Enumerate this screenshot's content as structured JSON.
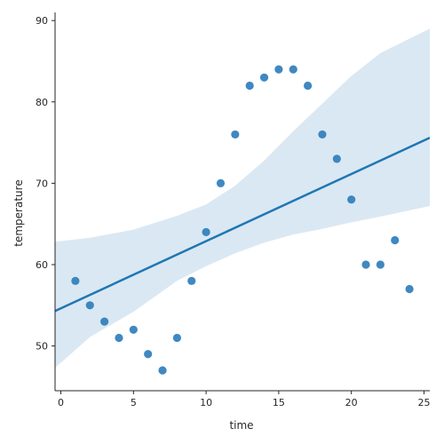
{
  "chart_data": {
    "type": "scatter",
    "title": "",
    "xlabel": "time",
    "ylabel": "temperature",
    "xlim": [
      -0.4,
      25.4
    ],
    "ylim": [
      44.5,
      91
    ],
    "xticks": [
      0,
      5,
      10,
      15,
      20,
      25
    ],
    "yticks": [
      50,
      60,
      70,
      80,
      90
    ],
    "grid": false,
    "colors": {
      "points": "#2f7ebc",
      "line": "#1f77b4",
      "band": "#bcd5ea"
    },
    "points": [
      {
        "x": 1,
        "y": 58
      },
      {
        "x": 2,
        "y": 55
      },
      {
        "x": 3,
        "y": 53
      },
      {
        "x": 4,
        "y": 51
      },
      {
        "x": 5,
        "y": 52
      },
      {
        "x": 6,
        "y": 49
      },
      {
        "x": 7,
        "y": 47
      },
      {
        "x": 8,
        "y": 51
      },
      {
        "x": 9,
        "y": 58
      },
      {
        "x": 10,
        "y": 64
      },
      {
        "x": 11,
        "y": 70
      },
      {
        "x": 12,
        "y": 76
      },
      {
        "x": 13,
        "y": 82
      },
      {
        "x": 14,
        "y": 83
      },
      {
        "x": 15,
        "y": 84
      },
      {
        "x": 16,
        "y": 84
      },
      {
        "x": 17,
        "y": 82
      },
      {
        "x": 18,
        "y": 76
      },
      {
        "x": 19,
        "y": 73
      },
      {
        "x": 20,
        "y": 68
      },
      {
        "x": 21,
        "y": 60
      },
      {
        "x": 22,
        "y": 60
      },
      {
        "x": 23,
        "y": 63
      },
      {
        "x": 24,
        "y": 57
      }
    ],
    "regression_line": [
      {
        "x": -0.4,
        "y": 54.3
      },
      {
        "x": 25.4,
        "y": 75.6
      }
    ],
    "confidence_band": {
      "x": [
        -0.4,
        2,
        5,
        8,
        10,
        12,
        14,
        16,
        18,
        20,
        22,
        25.4
      ],
      "upper": [
        62.8,
        63.3,
        64.3,
        66.0,
        67.4,
        69.7,
        72.8,
        76.4,
        79.8,
        83.2,
        86.0,
        89.0
      ],
      "lower": [
        47.3,
        51.1,
        54.2,
        58.0,
        59.8,
        61.4,
        62.7,
        63.7,
        64.4,
        65.2,
        65.9,
        67.2
      ]
    }
  }
}
